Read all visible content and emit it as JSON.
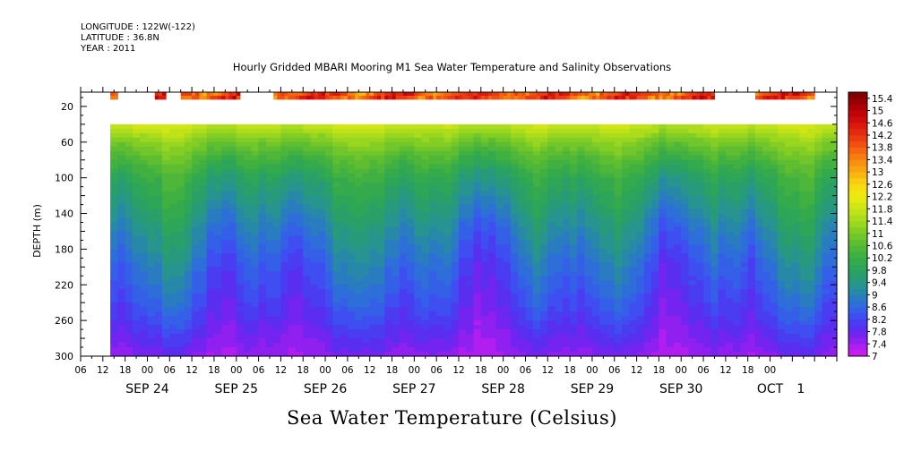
{
  "header": {
    "longitude": "LONGITUDE : 122W(-122)",
    "latitude": "LATITUDE : 36.8N",
    "year": "YEAR : 2011"
  },
  "chart_data": {
    "type": "heatmap",
    "title": "Hourly Gridded MBARI Mooring M1 Sea Water Temperature and Salinity Observations",
    "variable_label": "Sea Water Temperature (Celsius)",
    "ylabel": "DEPTH (m)",
    "y_reversed": true,
    "ylim": [
      300,
      4
    ],
    "y_ticks": [
      20,
      60,
      100,
      140,
      180,
      220,
      260,
      300
    ],
    "xlim_hours_from_sep24_00": [
      -18,
      186
    ],
    "x_hour_labels": [
      "06",
      "12",
      "18",
      "00",
      "06",
      "12",
      "18",
      "00",
      "06",
      "12",
      "18",
      "00",
      "06",
      "12",
      "18",
      "00",
      "06",
      "12",
      "18",
      "00",
      "06",
      "12",
      "18",
      "00",
      "06",
      "12",
      "18",
      "00",
      "06",
      "12",
      "18",
      "00"
    ],
    "x_hour_label_start": -18,
    "x_hour_label_step": 6,
    "x_date_labels": [
      {
        "label": "SEP 24",
        "hours": 0
      },
      {
        "label": "SEP 25",
        "hours": 24
      },
      {
        "label": "SEP 26",
        "hours": 48
      },
      {
        "label": "SEP 27",
        "hours": 72
      },
      {
        "label": "SEP 28",
        "hours": 96
      },
      {
        "label": "SEP 29",
        "hours": 120
      },
      {
        "label": "SEP 30",
        "hours": 144
      },
      {
        "label": "OCT",
        "hours": 168
      },
      {
        "label": "1",
        "hours": 175.2
      }
    ],
    "data_start_hour": -10,
    "surface_depth_range": [
      4,
      12
    ],
    "surface_segments": [
      {
        "start": -10,
        "end": -8
      },
      {
        "start": 2,
        "end": 5
      },
      {
        "start": 9,
        "end": 25
      },
      {
        "start": 34,
        "end": 89
      },
      {
        "start": 89,
        "end": 153
      },
      {
        "start": 164,
        "end": 180
      }
    ],
    "surface_temperature_range": [
      12.8,
      15.2
    ],
    "subsurface_start_depth": 40,
    "depth_profile": [
      {
        "depth": 40,
        "temp": 11.8
      },
      {
        "depth": 60,
        "temp": 11.0
      },
      {
        "depth": 80,
        "temp": 10.4
      },
      {
        "depth": 100,
        "temp": 9.9
      },
      {
        "depth": 120,
        "temp": 9.6
      },
      {
        "depth": 140,
        "temp": 9.3
      },
      {
        "depth": 160,
        "temp": 9.0
      },
      {
        "depth": 180,
        "temp": 8.8
      },
      {
        "depth": 200,
        "temp": 8.55
      },
      {
        "depth": 220,
        "temp": 8.4
      },
      {
        "depth": 240,
        "temp": 8.2
      },
      {
        "depth": 260,
        "temp": 8.0
      },
      {
        "depth": 280,
        "temp": 7.75
      },
      {
        "depth": 300,
        "temp": 7.5
      }
    ],
    "colorbar": {
      "labels": [
        "7",
        "7.4",
        "7.8",
        "8.2",
        "8.6",
        "9",
        "9.4",
        "9.8",
        "10.2",
        "10.6",
        "11",
        "11.4",
        "11.8",
        "12.2",
        "12.6",
        "13",
        "13.4",
        "13.8",
        "14.2",
        "14.6",
        "15",
        "15.4"
      ],
      "levels": [
        7.0,
        7.2,
        7.4,
        7.6,
        7.8,
        8.0,
        8.2,
        8.4,
        8.6,
        8.8,
        9.0,
        9.2,
        9.4,
        9.6,
        9.8,
        10.0,
        10.2,
        10.4,
        10.6,
        10.8,
        11.0,
        11.2,
        11.4,
        11.6,
        11.8,
        12.0,
        12.2,
        12.4,
        12.6,
        12.8,
        13.0,
        13.2,
        13.4,
        13.6,
        13.8,
        14.0,
        14.2,
        14.4,
        14.6,
        14.8,
        15.0,
        15.2,
        15.4,
        15.6
      ],
      "colors": [
        "#c81cf0",
        "#b01ef0",
        "#9020f0",
        "#7424f0",
        "#5a2ef0",
        "#4a3cf0",
        "#3e4ef0",
        "#3460e8",
        "#2e6ed8",
        "#2a7cc0",
        "#2888a8",
        "#289490",
        "#289a7c",
        "#2aa068",
        "#2ea658",
        "#34aa4c",
        "#40b040",
        "#4eb638",
        "#5ebe30",
        "#70c62a",
        "#84ce24",
        "#98d620",
        "#acdc1c",
        "#c0e218",
        "#d2e614",
        "#e4ea12",
        "#f0e610",
        "#f6dc10",
        "#f8cc10",
        "#f8b810",
        "#f8a410",
        "#f89010",
        "#f67c10",
        "#f46610",
        "#f05010",
        "#ea3c10",
        "#e42a0e",
        "#dc1a0c",
        "#d00c0a",
        "#c00408",
        "#ae0006",
        "#980004",
        "#800002"
      ]
    }
  }
}
